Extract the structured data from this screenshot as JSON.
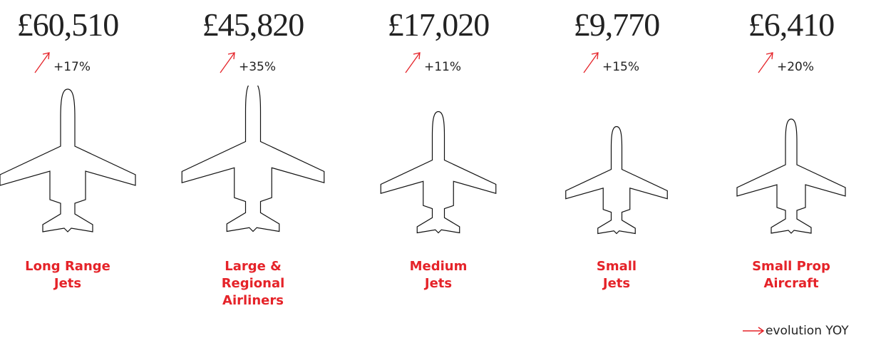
{
  "items": [
    {
      "price": "£60,510",
      "change": "+17%",
      "label": [
        "Long Range",
        "Jets"
      ]
    },
    {
      "price": "£45,820",
      "change": "+35%",
      "label": [
        "Large &",
        "Regional",
        "Airliners"
      ]
    },
    {
      "price": "£17,020",
      "change": "+11%",
      "label": [
        "Medium",
        "Jets"
      ]
    },
    {
      "price": "£9,770",
      "change": "+15%",
      "label": [
        "Small",
        "Jets"
      ]
    },
    {
      "price": "£6,410",
      "change": "+20%",
      "label": [
        "Small Prop",
        "Aircraft"
      ]
    }
  ],
  "legend": "evolution YOY"
}
